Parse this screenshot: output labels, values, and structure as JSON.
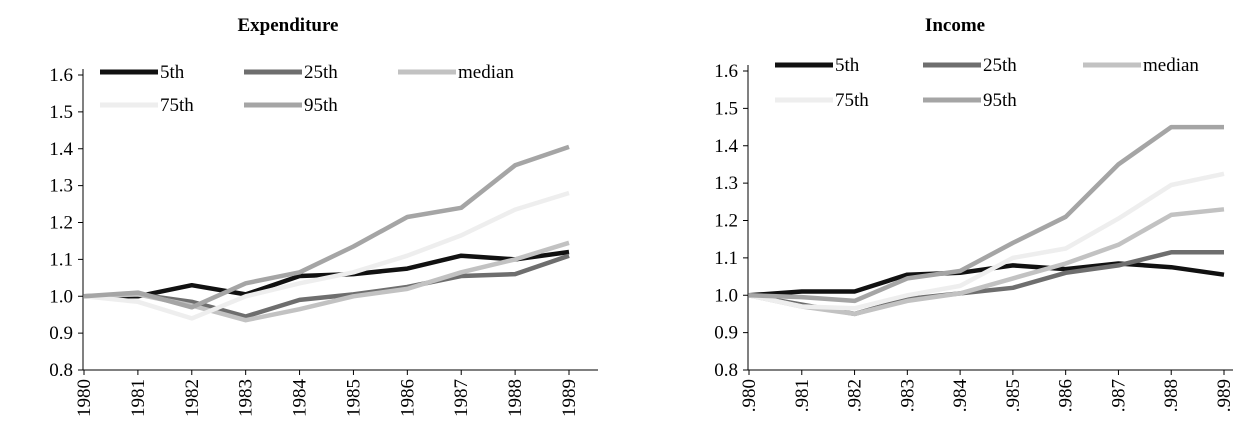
{
  "chart_data": [
    {
      "type": "line",
      "title": "Expenditure",
      "x": [
        "1980",
        "1981",
        "1982",
        "1983",
        "1984",
        "1985",
        "1986",
        "1987",
        "1988",
        "1989"
      ],
      "ylim": [
        0.8,
        1.6
      ],
      "yticks": [
        "0.8",
        "0.9",
        "1.0",
        "1.1",
        "1.2",
        "1.3",
        "1.4",
        "1.5",
        "1.6"
      ],
      "grid": false,
      "legend": "top",
      "series": [
        {
          "name": "5th",
          "color": "#111111",
          "values": [
            1.0,
            1.0,
            1.03,
            1.005,
            1.055,
            1.06,
            1.075,
            1.11,
            1.1,
            1.12
          ]
        },
        {
          "name": "25th",
          "color": "#6e6e6e",
          "values": [
            1.0,
            1.005,
            0.985,
            0.945,
            0.99,
            1.005,
            1.025,
            1.055,
            1.06,
            1.11
          ]
        },
        {
          "name": "median",
          "color": "#c2c2c2",
          "values": [
            1.0,
            1.005,
            0.975,
            0.935,
            0.965,
            1.0,
            1.02,
            1.065,
            1.1,
            1.145
          ]
        },
        {
          "name": "75th",
          "color": "#eeeeee",
          "values": [
            1.0,
            0.985,
            0.94,
            1.0,
            1.035,
            1.065,
            1.11,
            1.165,
            1.235,
            1.28
          ]
        },
        {
          "name": "95th",
          "color": "#a5a5a5",
          "values": [
            1.0,
            1.01,
            0.97,
            1.035,
            1.065,
            1.135,
            1.215,
            1.24,
            1.355,
            1.405
          ]
        }
      ]
    },
    {
      "type": "line",
      "title": "Income",
      "x": [
        ".980",
        ".981",
        ".982",
        ".983",
        ".984",
        ".985",
        ".986",
        ".987",
        ".988",
        ".989"
      ],
      "ylim": [
        0.8,
        1.6
      ],
      "yticks": [
        "0.8",
        "0.9",
        "1.0",
        "1.1",
        "1.2",
        "1.3",
        "1.4",
        "1.5",
        "1.6"
      ],
      "grid": false,
      "legend": "top",
      "series": [
        {
          "name": "5th",
          "color": "#111111",
          "values": [
            1.0,
            1.01,
            1.01,
            1.055,
            1.06,
            1.08,
            1.07,
            1.085,
            1.075,
            1.055
          ]
        },
        {
          "name": "25th",
          "color": "#6e6e6e",
          "values": [
            1.0,
            0.975,
            0.95,
            0.99,
            1.005,
            1.02,
            1.06,
            1.08,
            1.115,
            1.115
          ]
        },
        {
          "name": "median",
          "color": "#c2c2c2",
          "values": [
            1.0,
            0.97,
            0.95,
            0.985,
            1.005,
            1.045,
            1.085,
            1.135,
            1.215,
            1.23
          ]
        },
        {
          "name": "75th",
          "color": "#eeeeee",
          "values": [
            1.0,
            0.97,
            0.965,
            1.0,
            1.025,
            1.1,
            1.125,
            1.205,
            1.295,
            1.325
          ]
        },
        {
          "name": "95th",
          "color": "#a5a5a5",
          "values": [
            1.0,
            0.995,
            0.985,
            1.045,
            1.065,
            1.14,
            1.21,
            1.35,
            1.45,
            1.45
          ]
        }
      ]
    }
  ]
}
